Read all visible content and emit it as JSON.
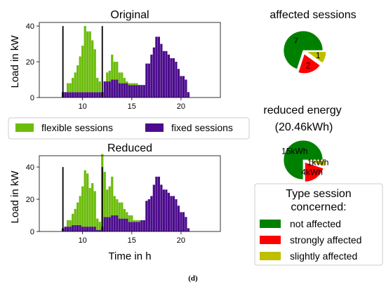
{
  "chart_data": [
    {
      "type": "bar",
      "title": "Original",
      "xlabel": "",
      "ylabel": "Load in kW",
      "xlim": [
        5.6,
        24.0
      ],
      "ylim": [
        0,
        42
      ],
      "xticks": [
        10,
        15,
        20
      ],
      "yticks": [
        0,
        20,
        40
      ],
      "stacked": true,
      "bar_width_h": 0.25,
      "vlines": [
        {
          "x": 8.0,
          "y": 40
        },
        {
          "x": 12.0,
          "y": 40
        }
      ],
      "x": [
        8.0,
        8.25,
        8.5,
        8.75,
        9.0,
        9.25,
        9.5,
        9.75,
        10.0,
        10.25,
        10.5,
        10.75,
        11.0,
        11.25,
        11.5,
        11.75,
        12.0,
        12.25,
        12.5,
        12.75,
        13.0,
        13.25,
        13.5,
        13.75,
        14.0,
        14.25,
        14.5,
        14.75,
        15.0,
        15.25,
        15.5,
        15.75,
        16.0,
        16.25,
        16.5,
        16.75,
        17.0,
        17.25,
        17.5,
        17.75,
        18.0,
        18.25,
        18.5,
        18.75,
        19.0,
        19.25,
        19.5,
        19.75,
        20.0,
        20.25,
        20.5,
        20.75,
        21.0,
        21.25,
        21.5
      ],
      "series": [
        {
          "name": "fixed sessions",
          "color": "#4b0b8c",
          "values": [
            3,
            3,
            3,
            3,
            3,
            3,
            3,
            3,
            3,
            3,
            3,
            3,
            3,
            3,
            3,
            3,
            3,
            9,
            9,
            9,
            10,
            10,
            10,
            8,
            8,
            8,
            8,
            7,
            7,
            7,
            7,
            7,
            7,
            7,
            19,
            19,
            24,
            28,
            34,
            34,
            30,
            26,
            26,
            24,
            22,
            22,
            20,
            16,
            12,
            12,
            10,
            3,
            0,
            0,
            0
          ]
        },
        {
          "name": "flexible sessions",
          "color": "#6cbc0c",
          "values": [
            0,
            0,
            5,
            5,
            8,
            11,
            15,
            20,
            26,
            37,
            34,
            34,
            29,
            24,
            8,
            6,
            0,
            0,
            5,
            6,
            14,
            10,
            10,
            6,
            6,
            3,
            1,
            1,
            1,
            1,
            1,
            0,
            0,
            0,
            0,
            0,
            0,
            0,
            0,
            0,
            0,
            0,
            0,
            0,
            0,
            0,
            0,
            0,
            0,
            0,
            0,
            0,
            0,
            0,
            0
          ]
        }
      ]
    },
    {
      "type": "bar",
      "title": "Reduced",
      "xlabel": "Time in h",
      "ylabel": "Load in kW",
      "xlim": [
        5.6,
        24.0
      ],
      "ylim": [
        0,
        47
      ],
      "xticks": [
        10,
        15,
        20
      ],
      "yticks": [
        0,
        20,
        40
      ],
      "stacked": true,
      "bar_width_h": 0.25,
      "vlines": [
        {
          "x": 8.0,
          "y": 40
        },
        {
          "x": 12.0,
          "y": 40
        }
      ],
      "x": [
        8.0,
        8.25,
        8.5,
        8.75,
        9.0,
        9.25,
        9.5,
        9.75,
        10.0,
        10.25,
        10.5,
        10.75,
        11.0,
        11.25,
        11.5,
        11.75,
        12.0,
        12.25,
        12.5,
        12.75,
        13.0,
        13.25,
        13.5,
        13.75,
        14.0,
        14.25,
        14.5,
        14.75,
        15.0,
        15.25,
        15.5,
        15.75,
        16.0,
        16.25,
        16.5,
        16.75,
        17.0,
        17.25,
        17.5,
        17.75,
        18.0,
        18.25,
        18.5,
        18.75,
        19.0,
        19.25,
        19.5,
        19.75,
        20.0,
        20.25,
        20.5,
        20.75,
        21.0,
        21.25,
        21.5
      ],
      "series": [
        {
          "name": "fixed sessions",
          "color": "#4b0b8c",
          "values": [
            2,
            3,
            3,
            3,
            4,
            4,
            4,
            4,
            3,
            3,
            3,
            3,
            3,
            3,
            1,
            1,
            3,
            9,
            9,
            9,
            10,
            10,
            10,
            8,
            8,
            8,
            8,
            6,
            6,
            6,
            6,
            6,
            7,
            7,
            19,
            20,
            22,
            29,
            34,
            34,
            29,
            26,
            26,
            24,
            22,
            22,
            20,
            16,
            12,
            12,
            9,
            2,
            0,
            0,
            0
          ]
        },
        {
          "name": "flexible sessions",
          "color": "#6cbc0c",
          "values": [
            0,
            0,
            4,
            4,
            7,
            10,
            14,
            18,
            25,
            35,
            33,
            24,
            27,
            22,
            7,
            5,
            45,
            28,
            17,
            19,
            24,
            12,
            10,
            10,
            10,
            6,
            4,
            4,
            4,
            1,
            1,
            1,
            0,
            0,
            0,
            0,
            0,
            0,
            0,
            0,
            0,
            0,
            0,
            0,
            0,
            0,
            0,
            0,
            0,
            0,
            0,
            0,
            0,
            0,
            0
          ]
        }
      ]
    },
    {
      "type": "pie",
      "title": "affected sessions",
      "slices": [
        {
          "label": "not affected",
          "value": 7,
          "text": "7",
          "color": "#008000"
        },
        {
          "label": "strongly affected",
          "value": 2,
          "text": "2",
          "color": "#ff0000"
        },
        {
          "label": "slightly affected",
          "value": 1,
          "text": "1",
          "color": "#bfbf00"
        }
      ]
    },
    {
      "type": "pie",
      "title": "reduced energy",
      "subtitle": "(20.46kWh)",
      "slices": [
        {
          "label": "not affected",
          "value": 15,
          "text": "15kWh",
          "color": "#008000"
        },
        {
          "label": "strongly affected",
          "value": 4,
          "text": "4kWh",
          "color": "#ff0000"
        },
        {
          "label": "slightly affected",
          "value": 1,
          "text": "1kWh",
          "color": "#bfbf00"
        }
      ]
    }
  ],
  "bar_legend": {
    "items": [
      {
        "label": "flexible sessions",
        "color": "#6cbc0c"
      },
      {
        "label": "fixed sessions",
        "color": "#4b0b8c"
      }
    ]
  },
  "pie_legend": {
    "title_line1": "Type session",
    "title_line2": "concerned:",
    "items": [
      {
        "label": "not affected",
        "color": "#008000"
      },
      {
        "label": "strongly affected",
        "color": "#ff0000"
      },
      {
        "label": "slightly affected",
        "color": "#bfbf00"
      }
    ]
  },
  "caption": "(d)"
}
